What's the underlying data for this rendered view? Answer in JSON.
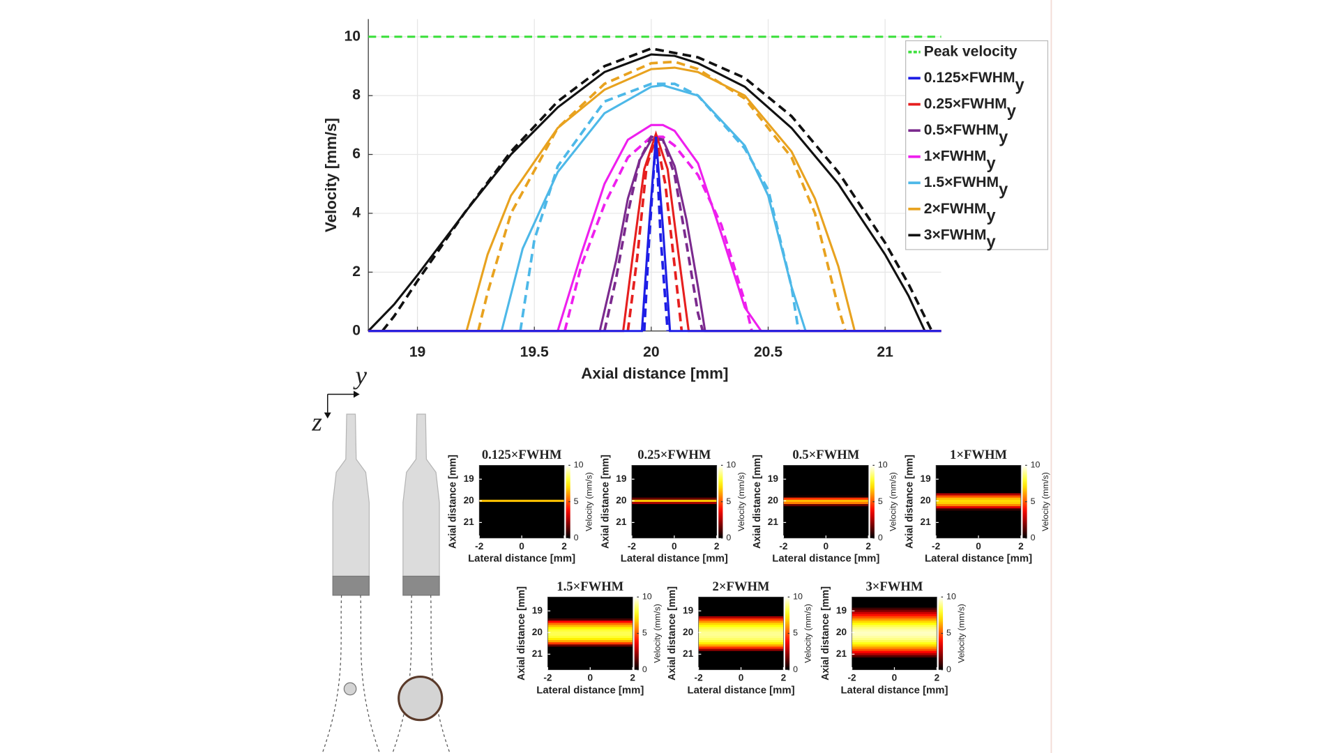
{
  "chart_data": [
    {
      "type": "line",
      "xlabel": "Axial distance [mm]",
      "ylabel": "Velocity [mm/s]",
      "xlim": [
        18.79,
        21.24
      ],
      "ylim": [
        0,
        10.6
      ],
      "xticks": [
        19,
        19.5,
        20,
        20.5,
        21
      ],
      "yticks": [
        0,
        2,
        4,
        6,
        8,
        10
      ],
      "grid": true,
      "legend": "upper right",
      "name_subscript": "y",
      "series": [
        {
          "name": "Peak velocity",
          "color": "#3ee03e",
          "dash": true,
          "x": [
            18.79,
            21.24
          ],
          "values": [
            10,
            10
          ]
        },
        {
          "name": "0.125×FWHM",
          "color": "#1f1fe6",
          "dash": false,
          "x": [
            18.79,
            19.96,
            19.99,
            20.02,
            20.05,
            20.08,
            21.24
          ],
          "values": [
            0,
            0,
            3.5,
            6.6,
            3.5,
            0,
            0
          ],
          "dashed_x": [
            19.97,
            19.99,
            20.02,
            20.04,
            20.07
          ],
          "dashed_values": [
            0,
            3.0,
            6.6,
            3.2,
            0
          ]
        },
        {
          "name": "0.25×FWHM",
          "color": "#e61f1f",
          "dash": false,
          "x": [
            18.79,
            19.88,
            19.92,
            19.97,
            20.02,
            20.07,
            20.12,
            20.16,
            21.24
          ],
          "values": [
            0,
            0,
            2.5,
            5.5,
            6.7,
            5.5,
            2.4,
            0,
            0
          ],
          "dashed_x": [
            19.9,
            19.94,
            19.98,
            20.02,
            20.06,
            20.1,
            20.13
          ],
          "dashed_values": [
            0,
            2.5,
            5.6,
            6.6,
            5.0,
            2.2,
            0
          ]
        },
        {
          "name": "0.5×FWHM",
          "color": "#7b2a8e",
          "dash": false,
          "x": [
            18.79,
            19.78,
            19.85,
            19.9,
            19.95,
            20.0,
            20.05,
            20.1,
            20.15,
            20.2,
            20.23,
            21.24
          ],
          "values": [
            0,
            0,
            2.4,
            4.5,
            5.8,
            6.5,
            6.5,
            5.6,
            3.8,
            1.5,
            0,
            0
          ],
          "dashed_x": [
            19.8,
            19.85,
            19.9,
            19.95,
            20.0,
            20.05,
            20.1,
            20.15,
            20.2,
            20.22
          ],
          "dashed_values": [
            0,
            1.8,
            4.0,
            5.8,
            6.6,
            6.5,
            5.3,
            3.0,
            0.6,
            0
          ]
        },
        {
          "name": "1×FWHM",
          "color": "#ee1fee",
          "dash": false,
          "x": [
            18.79,
            19.6,
            19.7,
            19.8,
            19.9,
            20.0,
            20.05,
            20.1,
            20.2,
            20.3,
            20.4,
            20.47,
            21.24
          ],
          "values": [
            0,
            0,
            2.6,
            5.0,
            6.5,
            7.0,
            7.0,
            6.8,
            5.7,
            3.3,
            0.8,
            0,
            0
          ],
          "dashed_x": [
            19.63,
            19.7,
            19.8,
            19.9,
            20.0,
            20.05,
            20.1,
            20.2,
            20.3,
            20.4,
            20.43
          ],
          "dashed_values": [
            0,
            2.2,
            4.3,
            5.9,
            6.6,
            6.6,
            6.3,
            5.3,
            3.6,
            1.0,
            0
          ]
        },
        {
          "name": "1.5×FWHM",
          "color": "#4db8e8",
          "dash": false,
          "x": [
            18.79,
            19.36,
            19.45,
            19.6,
            19.8,
            20.0,
            20.05,
            20.2,
            20.4,
            20.5,
            20.6,
            20.66,
            21.24
          ],
          "values": [
            0,
            0,
            2.8,
            5.4,
            7.4,
            8.3,
            8.35,
            8.0,
            6.3,
            4.6,
            1.5,
            0,
            0
          ],
          "dashed_x": [
            19.44,
            19.5,
            19.6,
            19.8,
            20.0,
            20.1,
            20.2,
            20.4,
            20.5,
            20.6,
            20.63
          ],
          "dashed_values": [
            0,
            3.1,
            5.6,
            7.8,
            8.4,
            8.4,
            8.0,
            6.2,
            4.8,
            1.5,
            0
          ]
        },
        {
          "name": "2×FWHM",
          "color": "#e8a21f",
          "dash": false,
          "x": [
            18.79,
            19.21,
            19.3,
            19.4,
            19.6,
            19.8,
            20.0,
            20.1,
            20.2,
            20.4,
            20.6,
            20.7,
            20.8,
            20.87,
            21.24
          ],
          "values": [
            0,
            0,
            2.6,
            4.6,
            6.9,
            8.2,
            8.9,
            8.95,
            8.8,
            8.0,
            6.1,
            4.5,
            2.2,
            0,
            0
          ],
          "dashed_x": [
            19.26,
            19.3,
            19.4,
            19.6,
            19.8,
            20.0,
            20.1,
            20.2,
            20.4,
            20.6,
            20.7,
            20.8,
            20.83
          ],
          "dashed_values": [
            0,
            1.3,
            4.0,
            6.9,
            8.4,
            9.1,
            9.15,
            8.9,
            7.9,
            5.9,
            4.0,
            0.8,
            0
          ]
        },
        {
          "name": "3×FWHM",
          "color": "#111111",
          "dash": false,
          "x": [
            18.79,
            18.9,
            19.0,
            19.2,
            19.4,
            19.6,
            19.8,
            20.0,
            20.1,
            20.2,
            20.4,
            20.6,
            20.8,
            21.0,
            21.1,
            21.17,
            21.24
          ],
          "values": [
            0,
            0.9,
            1.9,
            4.0,
            6.0,
            7.6,
            8.8,
            9.4,
            9.35,
            9.1,
            8.3,
            6.9,
            5.0,
            2.6,
            1.2,
            0,
            0
          ],
          "dashed_x": [
            18.85,
            18.9,
            19.0,
            19.2,
            19.4,
            19.6,
            19.8,
            20.0,
            20.2,
            20.4,
            20.6,
            20.8,
            21.0,
            21.1,
            21.2
          ],
          "dashed_values": [
            0,
            0.5,
            1.7,
            4.0,
            6.1,
            7.8,
            9.0,
            9.6,
            9.3,
            8.6,
            7.3,
            5.4,
            3.0,
            1.6,
            0
          ]
        }
      ]
    },
    {
      "type": "heatmap",
      "xlabel": "Lateral distance [mm]",
      "ylabel": "Axial distance [mm]",
      "colorbar_label": "Velocity (mm/s)",
      "xlim": [
        -2,
        2
      ],
      "ylim": [
        21.72,
        18.36
      ],
      "clim": [
        0,
        10
      ],
      "xticks": [
        -2,
        0,
        2
      ],
      "yticks": [
        19,
        20,
        21
      ],
      "cticks": [
        0,
        5,
        10
      ],
      "rows": [
        18.4,
        18.5,
        18.6,
        18.7,
        18.8,
        18.9,
        19.0,
        19.1,
        19.2,
        19.3,
        19.4,
        19.5,
        19.6,
        19.7,
        19.8,
        19.9,
        20.0,
        20.1,
        20.2,
        20.3,
        20.4,
        20.5,
        20.6,
        20.7,
        20.8,
        20.9,
        21.0,
        21.1,
        21.2,
        21.3,
        21.4,
        21.5,
        21.6
      ],
      "panels": [
        {
          "title": "0.125×FWHM",
          "values": [
            0,
            0,
            0,
            0,
            0,
            0,
            0,
            0,
            0,
            0,
            0,
            0,
            0,
            0,
            0,
            0,
            6.6,
            0,
            0,
            0,
            0,
            0,
            0,
            0,
            0,
            0,
            0,
            0,
            0,
            0,
            0,
            0,
            0
          ]
        },
        {
          "title": "0.25×FWHM",
          "values": [
            0,
            0,
            0,
            0,
            0,
            0,
            0,
            0,
            0,
            0,
            0,
            0,
            0,
            0,
            0,
            1.5,
            6.7,
            2.4,
            0,
            0,
            0,
            0,
            0,
            0,
            0,
            0,
            0,
            0,
            0,
            0,
            0,
            0,
            0
          ]
        },
        {
          "title": "0.5×FWHM",
          "values": [
            0,
            0,
            0,
            0,
            0,
            0,
            0,
            0,
            0,
            0,
            0,
            0,
            0,
            0,
            0.3,
            4.5,
            6.5,
            5.6,
            1.5,
            0,
            0,
            0,
            0,
            0,
            0,
            0,
            0,
            0,
            0,
            0,
            0,
            0,
            0
          ]
        },
        {
          "title": "1×FWHM",
          "values": [
            0,
            0,
            0,
            0,
            0,
            0,
            0,
            0,
            0,
            0,
            0,
            0,
            0,
            2.6,
            5.0,
            6.5,
            7.0,
            6.8,
            5.7,
            3.3,
            0.8,
            0,
            0,
            0,
            0,
            0,
            0,
            0,
            0,
            0,
            0,
            0,
            0
          ]
        },
        {
          "title": "1.5×FWHM",
          "values": [
            0,
            0,
            0,
            0,
            0,
            0,
            0,
            0,
            0,
            0,
            1,
            3.8,
            5.4,
            6.5,
            7.4,
            8.0,
            8.3,
            8.3,
            8.0,
            7.3,
            6.3,
            4.6,
            1.5,
            0,
            0,
            0,
            0,
            0,
            0,
            0,
            0,
            0,
            0
          ]
        },
        {
          "title": "2×FWHM",
          "values": [
            0,
            0,
            0,
            0,
            0,
            0,
            0,
            0,
            0,
            2.6,
            4.6,
            5.9,
            6.9,
            7.6,
            8.2,
            8.6,
            8.9,
            8.95,
            8.8,
            8.5,
            8.0,
            7.2,
            6.1,
            4.5,
            2.2,
            0,
            0,
            0,
            0,
            0,
            0,
            0,
            0
          ]
        },
        {
          "title": "3×FWHM",
          "values": [
            0,
            0,
            0,
            0,
            0,
            0.9,
            1.9,
            3.0,
            4.0,
            5.0,
            6.0,
            6.9,
            7.6,
            8.3,
            8.8,
            9.2,
            9.4,
            9.35,
            9.1,
            8.8,
            8.3,
            7.7,
            6.9,
            6.0,
            5.0,
            3.8,
            2.6,
            1.2,
            0,
            0,
            0,
            0,
            0
          ]
        }
      ]
    }
  ],
  "illustration": {
    "horizontal_axis": "y",
    "vertical_axis": "z"
  }
}
